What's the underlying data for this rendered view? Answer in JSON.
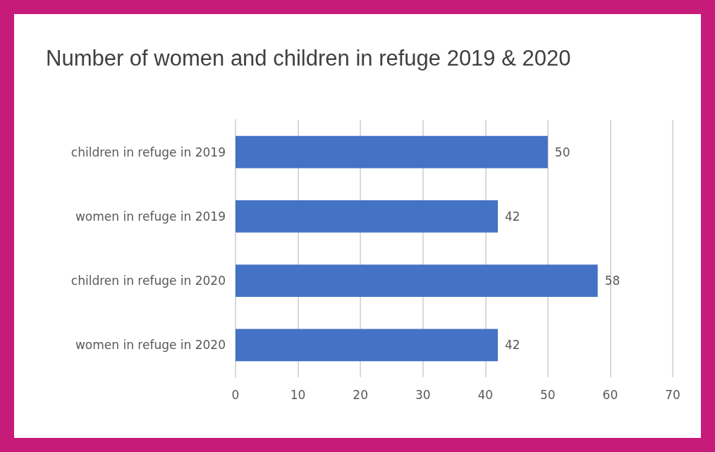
{
  "chart_data": {
    "type": "bar",
    "orientation": "horizontal",
    "title": "Number of women and children in refuge 2019 & 2020",
    "categories": [
      "children in refuge in 2019",
      "women in refuge in 2019",
      "children in refuge in 2020",
      "women in refuge in 2020"
    ],
    "values": [
      50,
      42,
      58,
      42
    ],
    "color": "#4472c4",
    "xlim": [
      0,
      70
    ],
    "xticks": [
      0,
      10,
      20,
      30,
      40,
      50,
      60,
      70
    ],
    "grid": "x",
    "data_labels": true
  }
}
